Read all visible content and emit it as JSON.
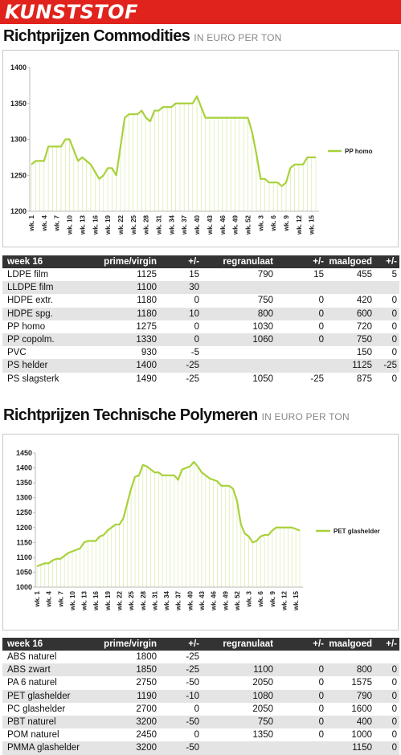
{
  "header": "KUNSTSTOF",
  "sections": [
    {
      "title": "Richtprijzen Commodities",
      "unit": "IN EURO PER TON",
      "table": {
        "columns": [
          "week 16",
          "prime/virgin",
          "+/-",
          "regranulaat",
          "+/-",
          "maalgoed",
          "+/-"
        ],
        "rows": [
          [
            "LDPE film",
            1125,
            15,
            790,
            15,
            455,
            5
          ],
          [
            "LLDPE film",
            1100,
            30,
            null,
            null,
            null,
            null
          ],
          [
            "HDPE extr.",
            1180,
            0,
            750,
            0,
            420,
            0
          ],
          [
            "HDPE spg.",
            1180,
            10,
            800,
            0,
            600,
            0
          ],
          [
            "PP homo",
            1275,
            0,
            1030,
            0,
            720,
            0
          ],
          [
            "PP copolm.",
            1330,
            0,
            1060,
            0,
            750,
            0
          ],
          [
            "PVC",
            930,
            -5,
            null,
            null,
            150,
            0
          ],
          [
            "PS helder",
            1400,
            -25,
            null,
            null,
            1125,
            -25
          ],
          [
            "PS slagsterk",
            1490,
            -25,
            1050,
            -25,
            875,
            0
          ]
        ]
      }
    },
    {
      "title": "Richtprijzen Technische Polymeren",
      "unit": "IN EURO PER TON",
      "table": {
        "columns": [
          "week 16",
          "prime/virgin",
          "+/-",
          "regranulaat",
          "+/-",
          "maalgoed",
          "+/-"
        ],
        "rows": [
          [
            "ABS naturel",
            1800,
            -25,
            null,
            null,
            null,
            null
          ],
          [
            "ABS zwart",
            1850,
            -25,
            1100,
            0,
            800,
            0
          ],
          [
            "PA 6 naturel",
            2750,
            -50,
            2050,
            0,
            1575,
            0
          ],
          [
            "PET glashelder",
            1190,
            -10,
            1080,
            0,
            790,
            0
          ],
          [
            "PC glashelder",
            2700,
            0,
            2050,
            0,
            1600,
            0
          ],
          [
            "PBT naturel",
            3200,
            -50,
            750,
            0,
            400,
            0
          ],
          [
            "POM naturel",
            2450,
            0,
            1350,
            0,
            1000,
            0
          ],
          [
            "PMMA glashelder",
            3200,
            -50,
            null,
            null,
            1150,
            0
          ]
        ]
      }
    }
  ],
  "chart_data": [
    {
      "type": "line",
      "legend": "right",
      "drop_lines": true,
      "grid": false,
      "categories": [
        "wk. 1",
        null,
        null,
        "wk. 4",
        null,
        null,
        "wk. 7",
        null,
        null,
        "wk. 10",
        null,
        null,
        "wk. 13",
        null,
        null,
        "wk. 16",
        null,
        null,
        "wk. 19",
        null,
        null,
        "wk. 22",
        null,
        null,
        "wk. 25",
        null,
        null,
        "wk. 28",
        null,
        null,
        "wk. 31",
        null,
        null,
        "wk. 34",
        null,
        null,
        "wk. 37",
        null,
        null,
        "wk. 40",
        null,
        null,
        "wk. 43",
        null,
        null,
        "wk. 46",
        null,
        null,
        "wk. 49",
        null,
        null,
        "wk. 52",
        null,
        null,
        "wk. 3",
        null,
        null,
        "wk. 6",
        null,
        null,
        "wk. 9",
        null,
        null,
        "wk. 12",
        null,
        null,
        "wk. 15",
        null
      ],
      "series": [
        {
          "name": "PP homo",
          "color": "#a8d13b",
          "values": [
            1265,
            1270,
            1270,
            1270,
            1290,
            1290,
            1290,
            1290,
            1300,
            1300,
            1285,
            1270,
            1275,
            1270,
            1265,
            1255,
            1245,
            1250,
            1260,
            1260,
            1250,
            1290,
            1330,
            1335,
            1335,
            1335,
            1340,
            1330,
            1325,
            1340,
            1340,
            1345,
            1345,
            1345,
            1350,
            1350,
            1350,
            1350,
            1350,
            1360,
            1345,
            1330,
            1330,
            1330,
            1330,
            1330,
            1330,
            1330,
            1330,
            1330,
            1330,
            1330,
            1310,
            1280,
            1245,
            1245,
            1240,
            1240,
            1240,
            1235,
            1240,
            1260,
            1265,
            1265,
            1265,
            1275,
            1275,
            1275
          ]
        }
      ],
      "ylim": [
        1200,
        1400
      ],
      "yticks": [
        1200,
        1250,
        1300,
        1350,
        1400
      ]
    },
    {
      "type": "line",
      "legend": "right",
      "drop_lines": true,
      "grid": false,
      "categories": [
        "wk. 1",
        null,
        null,
        "wk. 4",
        null,
        null,
        "wk. 7",
        null,
        null,
        "wk. 10",
        null,
        null,
        "wk. 13",
        null,
        null,
        "wk. 16",
        null,
        null,
        "wk. 19",
        null,
        null,
        "wk. 22",
        null,
        null,
        "wk. 25",
        null,
        null,
        "wk. 28",
        null,
        null,
        "wk. 31",
        null,
        null,
        "wk. 34",
        null,
        null,
        "wk. 37",
        null,
        null,
        "wk. 40",
        null,
        null,
        "wk. 43",
        null,
        null,
        "wk. 46",
        null,
        null,
        "wk. 49",
        null,
        null,
        "wk. 52",
        null,
        null,
        "wk. 3",
        null,
        null,
        "wk. 6",
        null,
        null,
        "wk. 9",
        null,
        null,
        "wk. 12",
        null,
        null,
        "wk. 15",
        null
      ],
      "series": [
        {
          "name": "PET glashelder",
          "color": "#a8d13b",
          "values": [
            1070,
            1075,
            1080,
            1080,
            1090,
            1095,
            1095,
            1105,
            1115,
            1120,
            1125,
            1130,
            1150,
            1155,
            1155,
            1155,
            1170,
            1175,
            1190,
            1200,
            1210,
            1210,
            1230,
            1280,
            1330,
            1370,
            1375,
            1410,
            1405,
            1395,
            1385,
            1385,
            1375,
            1375,
            1375,
            1375,
            1360,
            1395,
            1400,
            1405,
            1420,
            1405,
            1385,
            1375,
            1365,
            1360,
            1355,
            1340,
            1340,
            1340,
            1330,
            1290,
            1210,
            1180,
            1170,
            1150,
            1155,
            1170,
            1175,
            1175,
            1190,
            1200,
            1200,
            1200,
            1200,
            1200,
            1195,
            1190
          ]
        }
      ],
      "ylim": [
        1000,
        1450
      ],
      "yticks": [
        1000,
        1050,
        1100,
        1150,
        1200,
        1250,
        1300,
        1350,
        1400,
        1450
      ]
    }
  ]
}
